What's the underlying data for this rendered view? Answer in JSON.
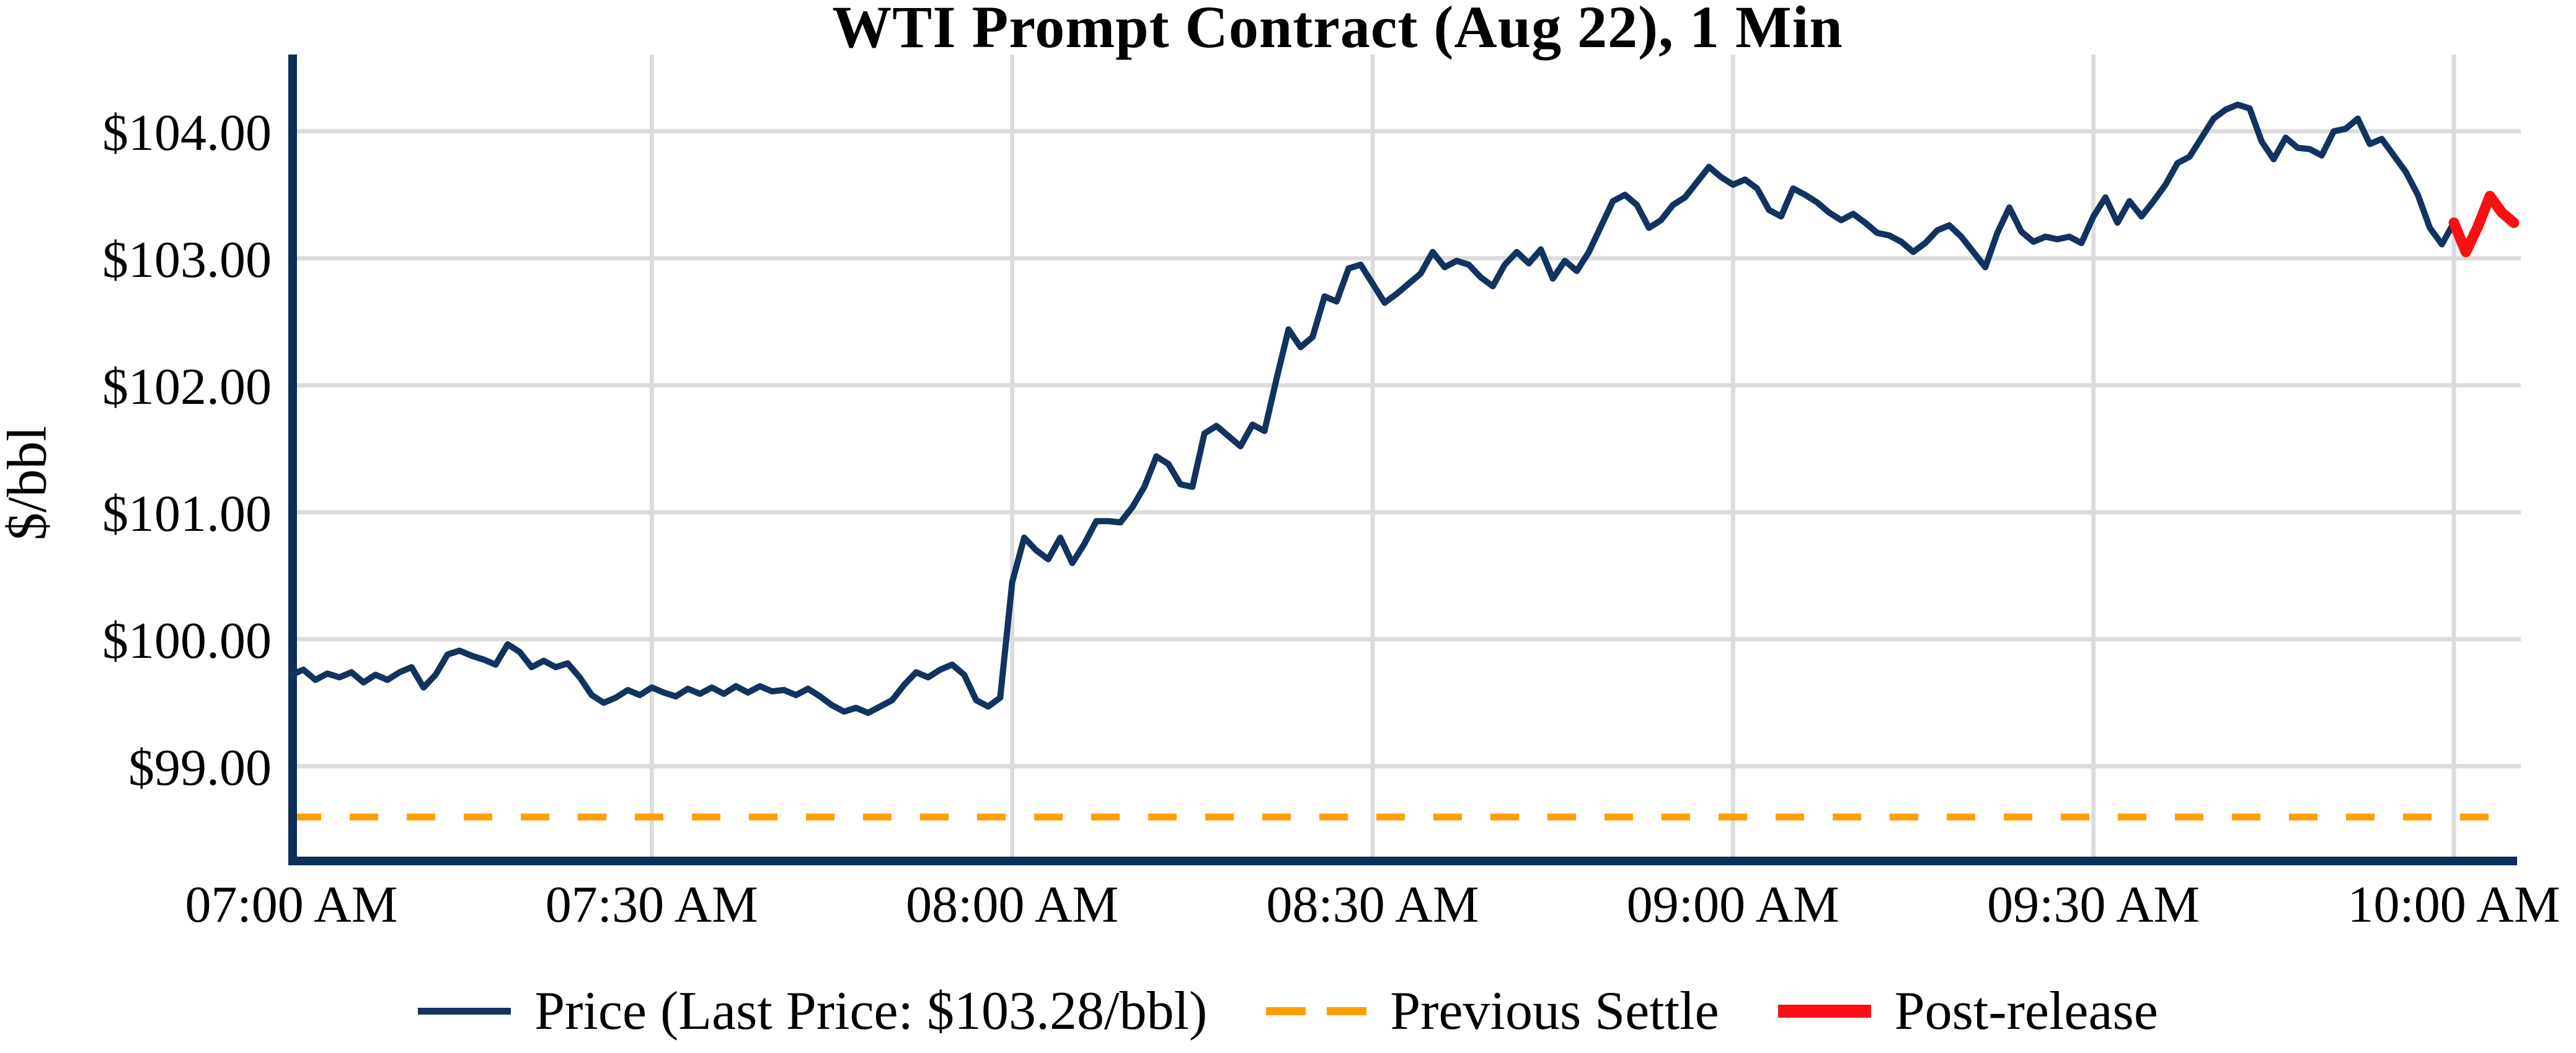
{
  "chart_data": {
    "type": "line",
    "title": "WTI Prompt Contract (Aug 22), 1 Min",
    "ylabel": "$/bbl",
    "xlabel": "",
    "x_tick_labels": [
      "07:00 AM",
      "07:30 AM",
      "08:00 AM",
      "08:30 AM",
      "09:00 AM",
      "09:30 AM",
      "10:00 AM"
    ],
    "x_tick_minutes": [
      0,
      30,
      60,
      90,
      120,
      150,
      180
    ],
    "y_tick_labels": [
      "$104.00",
      "$103.00",
      "$102.00",
      "$101.00",
      "$100.00",
      "$99.00"
    ],
    "y_tick_values": [
      104,
      103,
      102,
      101,
      100,
      99
    ],
    "ylim": [
      98.25,
      104.61
    ],
    "xlim_minutes": [
      0,
      185.3
    ],
    "grid": true,
    "legend_position": "bottom-center",
    "last_price": "103.28",
    "previous_settle_value": 98.6,
    "series": [
      {
        "name": "Price (Last Price: $103.28/bbl)",
        "type": "line",
        "color": "#12335f",
        "start_minute": 0,
        "step_minutes": 1,
        "values": [
          99.72,
          99.76,
          99.68,
          99.73,
          99.7,
          99.74,
          99.66,
          99.72,
          99.68,
          99.74,
          99.78,
          99.62,
          99.72,
          99.88,
          99.91,
          99.87,
          99.84,
          99.8,
          99.96,
          99.9,
          99.78,
          99.83,
          99.78,
          99.81,
          99.7,
          99.56,
          99.5,
          99.54,
          99.6,
          99.56,
          99.62,
          99.58,
          99.55,
          99.61,
          99.57,
          99.62,
          99.57,
          99.63,
          99.58,
          99.63,
          99.59,
          99.6,
          99.56,
          99.61,
          99.55,
          99.48,
          99.43,
          99.46,
          99.42,
          99.47,
          99.52,
          99.64,
          99.74,
          99.7,
          99.76,
          99.8,
          99.72,
          99.52,
          99.47,
          99.54,
          100.45,
          100.8,
          100.7,
          100.63,
          100.8,
          100.6,
          100.75,
          100.93,
          100.93,
          100.92,
          101.04,
          101.2,
          101.44,
          101.38,
          101.22,
          101.2,
          101.62,
          101.68,
          101.6,
          101.52,
          101.69,
          101.64,
          102.05,
          102.44,
          102.3,
          102.38,
          102.7,
          102.66,
          102.92,
          102.95,
          102.8,
          102.65,
          102.72,
          102.8,
          102.88,
          103.05,
          102.93,
          102.98,
          102.95,
          102.85,
          102.78,
          102.95,
          103.05,
          102.96,
          103.07,
          102.84,
          102.98,
          102.9,
          103.05,
          103.25,
          103.45,
          103.5,
          103.42,
          103.24,
          103.3,
          103.42,
          103.48,
          103.6,
          103.72,
          103.64,
          103.58,
          103.62,
          103.55,
          103.38,
          103.33,
          103.55,
          103.5,
          103.44,
          103.36,
          103.3,
          103.35,
          103.28,
          103.2,
          103.18,
          103.13,
          103.05,
          103.12,
          103.22,
          103.26,
          103.17,
          103.05,
          102.93,
          103.2,
          103.4,
          103.21,
          103.13,
          103.17,
          103.15,
          103.17,
          103.12,
          103.33,
          103.48,
          103.28,
          103.45,
          103.33,
          103.45,
          103.58,
          103.75,
          103.8,
          103.95,
          104.1,
          104.17,
          104.21,
          104.18,
          103.92,
          103.78,
          103.95,
          103.87,
          103.86,
          103.81,
          104.0,
          104.02,
          104.1,
          103.9,
          103.94,
          103.81,
          103.68,
          103.5,
          103.24,
          103.11,
          103.28
        ]
      },
      {
        "name": "Post-release",
        "type": "line",
        "color": "#fa0f14",
        "start_minute": 180,
        "step_minutes": 1,
        "values": [
          103.28,
          103.05,
          103.25,
          103.49,
          103.36,
          103.28
        ]
      },
      {
        "name": "Previous Settle",
        "type": "hline",
        "style": "dashed",
        "color": "#ff9e00",
        "value": 98.6
      }
    ]
  },
  "colors": {
    "price_line": "#12335f",
    "post_release": "#fa0f14",
    "previous_settle": "#ff9e00",
    "gridline": "#dcdcdc",
    "spine": "#0d2f5a",
    "text": "#000000"
  }
}
